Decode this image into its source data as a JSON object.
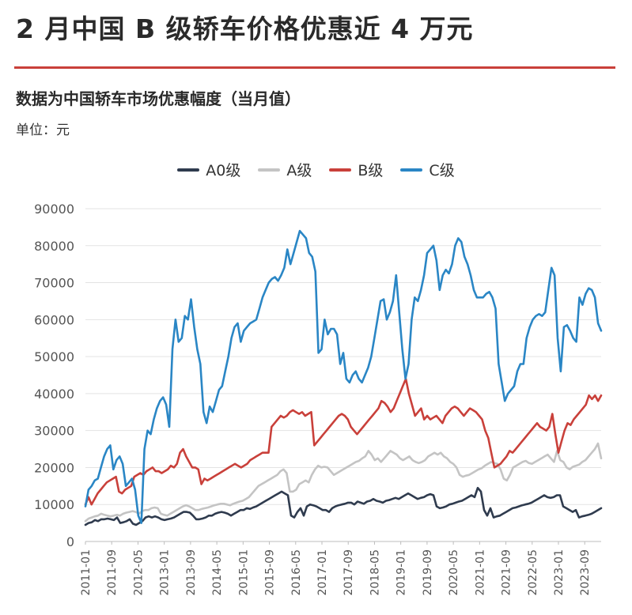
{
  "header": {
    "title": "2 月中国 B 级轿车价格优惠近 4 万元",
    "subtitle": "数据为中国轿车市场优惠幅度（当月值）",
    "unit": "单位：元"
  },
  "colors": {
    "accent_rule": "#c9403a"
  },
  "chart_data": {
    "type": "line",
    "title": "",
    "xlabel": "",
    "ylabel": "",
    "ylim": [
      0,
      90000
    ],
    "yticks": [
      0,
      10000,
      20000,
      30000,
      40000,
      50000,
      60000,
      70000,
      80000,
      90000
    ],
    "xticks": [
      "2011-01",
      "2011-09",
      "2012-05",
      "2013-01",
      "2013-09",
      "2014-05",
      "2015-01",
      "2015-09",
      "2016-05",
      "2017-01",
      "2017-09",
      "2018-05",
      "2019-01",
      "2019-09",
      "2020-05",
      "2021-01",
      "2021-09",
      "2022-05",
      "2023-01",
      "2023-09"
    ],
    "x_start": "2011-01",
    "x_end": "2024-02",
    "grid": "horizontal",
    "legend_position": "top-center",
    "series": [
      {
        "name": "A0级",
        "color": "#2f3b4e",
        "values": [
          4500,
          5000,
          5200,
          5800,
          5500,
          6000,
          6000,
          6200,
          6000,
          5800,
          6500,
          5000,
          5200,
          5500,
          6000,
          4800,
          4500,
          5000,
          5500,
          6500,
          6800,
          6500,
          6800,
          6500,
          6000,
          5800,
          6000,
          6200,
          6500,
          7000,
          7500,
          8000,
          8000,
          7800,
          7000,
          6000,
          6000,
          6200,
          6500,
          7000,
          7000,
          7500,
          7800,
          8000,
          7800,
          7500,
          7000,
          7500,
          8000,
          8500,
          8500,
          9000,
          8800,
          9200,
          9500,
          10000,
          10500,
          11000,
          11500,
          12000,
          12500,
          13000,
          13500,
          13000,
          12500,
          7000,
          6500,
          8000,
          9000,
          7000,
          9500,
          10000,
          9800,
          9500,
          9000,
          8500,
          8500,
          8000,
          9000,
          9500,
          9800,
          10000,
          10200,
          10500,
          10500,
          10000,
          10800,
          10500,
          10200,
          10800,
          11000,
          11500,
          11000,
          10800,
          10500,
          11000,
          11200,
          11500,
          11800,
          11500,
          12000,
          12500,
          13000,
          12500,
          12000,
          11500,
          11800,
          12000,
          12500,
          12800,
          12500,
          9500,
          9000,
          9200,
          9500,
          10000,
          10200,
          10500,
          10800,
          11000,
          11500,
          12000,
          12500,
          12000,
          14500,
          13500,
          8500,
          7000,
          9000,
          6500,
          6800,
          7000,
          7500,
          8000,
          8500,
          9000,
          9200,
          9500,
          9800,
          10000,
          10200,
          10500,
          11000,
          11500,
          12000,
          12500,
          12000,
          11800,
          12000,
          12500,
          12500,
          9500,
          9000,
          8500,
          8000,
          8500,
          6500,
          6800,
          7000,
          7200,
          7500,
          8000,
          8500,
          9000
        ]
      },
      {
        "name": "A级",
        "color": "#c4c4c4",
        "values": [
          5500,
          6200,
          6500,
          6800,
          7000,
          7500,
          7200,
          7000,
          6800,
          7000,
          7200,
          7000,
          7500,
          7800,
          8000,
          8200,
          8000,
          7500,
          8200,
          8500,
          8500,
          9000,
          9200,
          9000,
          7500,
          7200,
          7000,
          7500,
          8000,
          8500,
          9000,
          9500,
          9800,
          9500,
          9000,
          8500,
          8500,
          8800,
          9000,
          9200,
          9500,
          9800,
          10000,
          10200,
          10200,
          10000,
          9800,
          10200,
          10500,
          10800,
          11000,
          11500,
          12000,
          13000,
          14000,
          15000,
          15500,
          16000,
          16500,
          17000,
          17500,
          18000,
          19000,
          19500,
          18500,
          13500,
          13500,
          14000,
          15500,
          16000,
          16500,
          16000,
          18000,
          19500,
          20500,
          20000,
          20200,
          20000,
          19000,
          18000,
          18500,
          19000,
          19500,
          20000,
          20500,
          21000,
          21500,
          21800,
          22500,
          23000,
          24500,
          23500,
          22000,
          22500,
          21500,
          22500,
          23500,
          24500,
          24000,
          23500,
          22500,
          22000,
          22500,
          23000,
          22000,
          21500,
          21200,
          21500,
          22000,
          23000,
          23500,
          24000,
          23500,
          24000,
          23000,
          22500,
          21500,
          21000,
          20000,
          18000,
          17500,
          17800,
          18000,
          18500,
          19000,
          19500,
          19800,
          20500,
          21000,
          21500,
          21200,
          21000,
          19500,
          17000,
          16500,
          18000,
          20000,
          20500,
          21000,
          21500,
          21800,
          21200,
          21000,
          21500,
          22000,
          22500,
          23000,
          23500,
          22500,
          21500,
          24500,
          22000,
          21500,
          20000,
          19500,
          20200,
          20500,
          20800,
          21500,
          22000,
          23000,
          24000,
          25000,
          26500,
          22500
        ]
      },
      {
        "name": "B级",
        "color": "#c9403a",
        "values": [
          10000,
          12000,
          10000,
          11500,
          13000,
          14000,
          15000,
          16000,
          16500,
          17000,
          17500,
          13500,
          13000,
          14000,
          14500,
          15000,
          17500,
          18000,
          18500,
          18000,
          19000,
          19500,
          20000,
          19000,
          19000,
          18500,
          19000,
          19500,
          20500,
          20000,
          21000,
          24000,
          25000,
          23000,
          21500,
          20000,
          20000,
          19500,
          15500,
          17000,
          16500,
          17000,
          17500,
          18000,
          18500,
          19000,
          19500,
          20000,
          20500,
          21000,
          20500,
          20000,
          20500,
          21000,
          22000,
          22500,
          23000,
          23500,
          24000,
          24000,
          24000,
          31000,
          32000,
          33000,
          34000,
          33500,
          34000,
          35000,
          35500,
          35000,
          34500,
          35000,
          34000,
          34500,
          35000,
          26000,
          27000,
          28000,
          29000,
          30000,
          31000,
          32000,
          33000,
          34000,
          34500,
          34000,
          33000,
          31000,
          30000,
          29000,
          30000,
          31000,
          32000,
          33000,
          34000,
          35000,
          36000,
          38000,
          37500,
          36500,
          35000,
          36000,
          38000,
          40000,
          42000,
          44000,
          40000,
          37000,
          34000,
          35000,
          36000,
          33000,
          34000,
          33000,
          33500,
          34000,
          33000,
          32000,
          34000,
          35000,
          36000,
          36500,
          36000,
          35000,
          34000,
          35000,
          36000,
          35500,
          35000,
          34000,
          33000,
          30000,
          28000,
          24000,
          20000,
          20500,
          21000,
          22000,
          23000,
          24500,
          24000,
          25000,
          26000,
          27000,
          28000,
          29000,
          30000,
          31000,
          32000,
          31000,
          30500,
          30000,
          31000,
          34500,
          29000,
          24000,
          27000,
          30000,
          32000,
          31500,
          33000,
          34000,
          35000,
          36000,
          37000,
          39500,
          38500,
          39500,
          38000,
          39500
        ]
      },
      {
        "name": "C级",
        "color": "#2a86c5",
        "values": [
          9500,
          14000,
          15000,
          16500,
          17000,
          20000,
          23000,
          25000,
          26000,
          19500,
          22000,
          23000,
          21000,
          15000,
          16000,
          17000,
          14000,
          7000,
          5000,
          25000,
          30000,
          29000,
          33000,
          36000,
          38000,
          39000,
          37000,
          31000,
          52000,
          60000,
          54000,
          55000,
          61000,
          60000,
          65500,
          58000,
          52000,
          48000,
          35000,
          32000,
          36500,
          35000,
          38000,
          41000,
          42000,
          46000,
          50000,
          55000,
          58000,
          59000,
          54000,
          57000,
          58000,
          59000,
          59500,
          60000,
          63000,
          66000,
          68000,
          70000,
          71000,
          71500,
          70500,
          72000,
          74000,
          79000,
          75000,
          78000,
          81000,
          84000,
          83000,
          82000,
          78000,
          77000,
          73000,
          51000,
          52000,
          60000,
          56000,
          57500,
          57500,
          56000,
          48000,
          51000,
          44000,
          43000,
          45000,
          46000,
          44000,
          43000,
          45000,
          47000,
          50000,
          55000,
          60000,
          65000,
          65500,
          60000,
          62000,
          65000,
          72000,
          62000,
          52000,
          44000,
          48000,
          60000,
          66000,
          65000,
          68000,
          72000,
          78000,
          79000,
          80000,
          76000,
          68000,
          72000,
          73500,
          72500,
          75000,
          80000,
          82000,
          81000,
          77000,
          75000,
          72000,
          68000,
          66000,
          66000,
          66000,
          67000,
          67500,
          66000,
          63000,
          48000,
          43000,
          38000,
          40000,
          41000,
          42000,
          46000,
          48000,
          48000,
          55000,
          58000,
          60000,
          61000,
          61500,
          61000,
          62000,
          68000,
          74000,
          72000,
          55000,
          46000,
          58000,
          58500,
          57000,
          55000,
          54000,
          66000,
          64000,
          67000,
          68500,
          68000,
          66000,
          59000,
          57000
        ]
      }
    ]
  }
}
